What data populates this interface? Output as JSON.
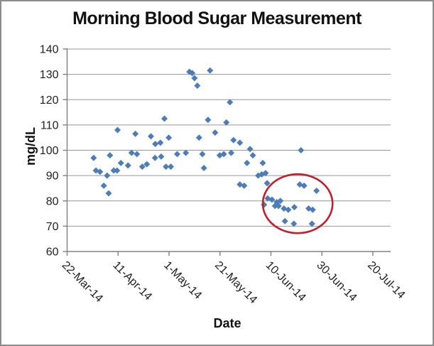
{
  "chart_data": {
    "type": "scatter",
    "title": "Morning Blood Sugar Measurement",
    "xlabel": "Date",
    "ylabel": "mg/dL",
    "x_epoch_label": "22-Mar-14",
    "x_tick_labels": [
      "22-Mar-14",
      "11-Apr-14",
      "1-May-14",
      "21-May-14",
      "10-Jun-14",
      "30-Jun-14",
      "20-Jul-14"
    ],
    "x_tick_days": [
      0,
      20,
      40,
      60,
      80,
      100,
      120
    ],
    "x_range_days": [
      0,
      127
    ],
    "y_ticks": [
      60,
      70,
      80,
      90,
      100,
      110,
      120,
      130,
      140
    ],
    "ylim": [
      60,
      140
    ],
    "grid": "horizontal-major",
    "legend": "none",
    "marker": {
      "shape": "diamond",
      "color": "#4C7DB8",
      "size": 9
    },
    "annotation_ellipse": {
      "center_day": 90.5,
      "center_value": 78.9,
      "radius_days": 13.7,
      "radius_value": 11.65,
      "color": "#C0202B"
    },
    "points_day_mgdl": [
      [
        10.4,
        97
      ],
      [
        11.3,
        92
      ],
      [
        12.9,
        91.5
      ],
      [
        14.4,
        86
      ],
      [
        15.7,
        90
      ],
      [
        16.3,
        83
      ],
      [
        16.8,
        98
      ],
      [
        18.3,
        92
      ],
      [
        19.6,
        92
      ],
      [
        19.8,
        108
      ],
      [
        21.1,
        95
      ],
      [
        23.9,
        94
      ],
      [
        25.3,
        99
      ],
      [
        26.8,
        106.5
      ],
      [
        27.4,
        98.5
      ],
      [
        29.5,
        93.5
      ],
      [
        31.3,
        94.5
      ],
      [
        32.9,
        105.5
      ],
      [
        34.5,
        97
      ],
      [
        34.6,
        102.5
      ],
      [
        36.6,
        103
      ],
      [
        36.9,
        97.5
      ],
      [
        38.2,
        112.5
      ],
      [
        38.8,
        93.5
      ],
      [
        39.9,
        105
      ],
      [
        40.7,
        93.5
      ],
      [
        43.2,
        98.5
      ],
      [
        46.6,
        99
      ],
      [
        48,
        131
      ],
      [
        49.1,
        130.5
      ],
      [
        50,
        128.5
      ],
      [
        51.1,
        125.5
      ],
      [
        51.8,
        105
      ],
      [
        53.1,
        98.5
      ],
      [
        53.7,
        93
      ],
      [
        55.3,
        112
      ],
      [
        56.1,
        131.5
      ],
      [
        58.1,
        107
      ],
      [
        59.9,
        98
      ],
      [
        61.5,
        98.5
      ],
      [
        62.5,
        111
      ],
      [
        63.9,
        119
      ],
      [
        64.4,
        99
      ],
      [
        65.3,
        104
      ],
      [
        67.8,
        103
      ],
      [
        67.8,
        86.5
      ],
      [
        69.5,
        86
      ],
      [
        70.6,
        95
      ],
      [
        71.8,
        100.5
      ],
      [
        72.9,
        98
      ],
      [
        75,
        90
      ],
      [
        76.4,
        90.5
      ],
      [
        76.8,
        95
      ],
      [
        77.3,
        78.5
      ],
      [
        77.9,
        91
      ],
      [
        78.5,
        87
      ],
      [
        78.7,
        81
      ],
      [
        80.4,
        80.5
      ],
      [
        81.6,
        78
      ],
      [
        82.3,
        79.5
      ],
      [
        83,
        78
      ],
      [
        83.7,
        80
      ],
      [
        85.1,
        77
      ],
      [
        85.5,
        72
      ],
      [
        86.8,
        76.5
      ],
      [
        89,
        71
      ],
      [
        89.2,
        77.5
      ],
      [
        91.3,
        86.5
      ],
      [
        91.8,
        100
      ],
      [
        93,
        86
      ],
      [
        94.8,
        77
      ],
      [
        96.1,
        71
      ],
      [
        96.4,
        76.5
      ],
      [
        97.9,
        84
      ]
    ]
  },
  "colors": {
    "marker": "#4C7DB8",
    "ellipse": "#C0202B",
    "gridline": "#969696",
    "axis": "#808080",
    "text": "#1f1f1f"
  }
}
